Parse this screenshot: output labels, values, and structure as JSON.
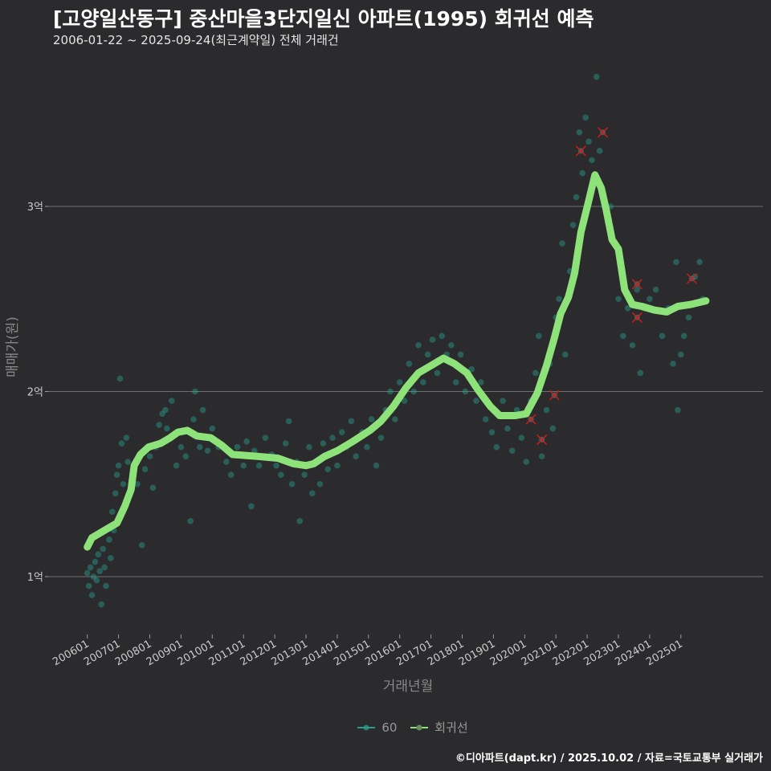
{
  "chart_data": {
    "type": "scatter",
    "title": "[고양일산동구] 중산마을3단지일신 아파트(1995) 회귀선 예측",
    "subtitle": "2006-01-22 ~ 2025-09-24(최근계약일) 전체 거래건",
    "xlabel": "거래년월",
    "ylabel": "매매가(원)",
    "x_ticks": [
      "200601",
      "200701",
      "200801",
      "200901",
      "201001",
      "201101",
      "201201",
      "201301",
      "201401",
      "201501",
      "201601",
      "201701",
      "201801",
      "201901",
      "202001",
      "202101",
      "202201",
      "202301",
      "202401",
      "202501"
    ],
    "y_ticks": [
      {
        "value": 1,
        "label": "1억"
      },
      {
        "value": 2,
        "label": "2억"
      },
      {
        "value": 3,
        "label": "3억"
      }
    ],
    "xlim": [
      2004.75,
      2026.6
    ],
    "ylim": [
      0.7,
      3.8
    ],
    "grid": true,
    "legend_position": "bottom",
    "legend": [
      {
        "name": "60",
        "color": "#2a9d8f"
      },
      {
        "name": "회귀선",
        "color": "#8ee27a"
      }
    ],
    "colors": {
      "points": "#2a9d8f",
      "line": "#8ee27a",
      "outlier": "#d7191c",
      "background": "#2b2a2c",
      "grid": "#707070"
    },
    "regression_line": [
      [
        2006.0,
        1.16
      ],
      [
        2006.15,
        1.21
      ],
      [
        2006.55,
        1.25
      ],
      [
        2006.95,
        1.29
      ],
      [
        2007.2,
        1.38
      ],
      [
        2007.4,
        1.47
      ],
      [
        2007.5,
        1.6
      ],
      [
        2007.7,
        1.66
      ],
      [
        2007.96,
        1.7
      ],
      [
        2008.35,
        1.72
      ],
      [
        2008.65,
        1.75
      ],
      [
        2008.9,
        1.78
      ],
      [
        2009.2,
        1.79
      ],
      [
        2009.5,
        1.76
      ],
      [
        2009.95,
        1.75
      ],
      [
        2010.3,
        1.71
      ],
      [
        2010.65,
        1.66
      ],
      [
        2011.45,
        1.65
      ],
      [
        2012.1,
        1.64
      ],
      [
        2012.6,
        1.61
      ],
      [
        2013.0,
        1.6
      ],
      [
        2013.25,
        1.61
      ],
      [
        2013.6,
        1.65
      ],
      [
        2014.0,
        1.68
      ],
      [
        2014.5,
        1.73
      ],
      [
        2015.05,
        1.79
      ],
      [
        2015.4,
        1.84
      ],
      [
        2015.8,
        1.92
      ],
      [
        2016.2,
        2.02
      ],
      [
        2016.6,
        2.1
      ],
      [
        2017.0,
        2.14
      ],
      [
        2017.4,
        2.18
      ],
      [
        2017.75,
        2.15
      ],
      [
        2018.15,
        2.1
      ],
      [
        2018.5,
        2.01
      ],
      [
        2018.9,
        1.92
      ],
      [
        2019.2,
        1.87
      ],
      [
        2019.7,
        1.87
      ],
      [
        2020.05,
        1.88
      ],
      [
        2020.4,
        1.99
      ],
      [
        2020.7,
        2.14
      ],
      [
        2020.95,
        2.29
      ],
      [
        2021.15,
        2.42
      ],
      [
        2021.4,
        2.51
      ],
      [
        2021.6,
        2.64
      ],
      [
        2021.8,
        2.86
      ],
      [
        2022.05,
        3.03
      ],
      [
        2022.25,
        3.17
      ],
      [
        2022.45,
        3.1
      ],
      [
        2022.6,
        2.99
      ],
      [
        2022.8,
        2.82
      ],
      [
        2023.0,
        2.77
      ],
      [
        2023.2,
        2.55
      ],
      [
        2023.45,
        2.47
      ],
      [
        2023.75,
        2.46
      ],
      [
        2024.15,
        2.44
      ],
      [
        2024.55,
        2.43
      ],
      [
        2024.9,
        2.46
      ],
      [
        2025.3,
        2.47
      ],
      [
        2025.8,
        2.49
      ]
    ],
    "points": [
      [
        2006.0,
        1.02
      ],
      [
        2006.05,
        0.95
      ],
      [
        2006.1,
        1.05
      ],
      [
        2006.15,
        0.9
      ],
      [
        2006.2,
        1.0
      ],
      [
        2006.25,
        1.08
      ],
      [
        2006.3,
        0.98
      ],
      [
        2006.35,
        1.12
      ],
      [
        2006.4,
        1.03
      ],
      [
        2006.45,
        0.85
      ],
      [
        2006.5,
        1.15
      ],
      [
        2006.55,
        1.05
      ],
      [
        2006.6,
        0.95
      ],
      [
        2006.7,
        1.2
      ],
      [
        2006.75,
        1.1
      ],
      [
        2006.8,
        1.35
      ],
      [
        2006.85,
        1.25
      ],
      [
        2006.9,
        1.45
      ],
      [
        2006.95,
        1.55
      ],
      [
        2007.0,
        1.6
      ],
      [
        2007.05,
        2.07
      ],
      [
        2007.1,
        1.72
      ],
      [
        2007.15,
        1.5
      ],
      [
        2007.25,
        1.75
      ],
      [
        2007.3,
        1.62
      ],
      [
        2007.45,
        1.55
      ],
      [
        2007.6,
        1.5
      ],
      [
        2007.75,
        1.17
      ],
      [
        2007.85,
        1.58
      ],
      [
        2008.0,
        1.65
      ],
      [
        2008.1,
        1.48
      ],
      [
        2008.2,
        1.7
      ],
      [
        2008.3,
        1.82
      ],
      [
        2008.4,
        1.88
      ],
      [
        2008.5,
        1.9
      ],
      [
        2008.55,
        1.8
      ],
      [
        2008.7,
        1.95
      ],
      [
        2008.85,
        1.6
      ],
      [
        2009.0,
        1.7
      ],
      [
        2009.15,
        1.65
      ],
      [
        2009.3,
        1.3
      ],
      [
        2009.4,
        1.85
      ],
      [
        2009.45,
        2.0
      ],
      [
        2009.6,
        1.7
      ],
      [
        2009.7,
        1.9
      ],
      [
        2009.85,
        1.68
      ],
      [
        2010.0,
        1.8
      ],
      [
        2010.2,
        1.7
      ],
      [
        2010.45,
        1.62
      ],
      [
        2010.6,
        1.55
      ],
      [
        2010.8,
        1.7
      ],
      [
        2011.0,
        1.6
      ],
      [
        2011.1,
        1.73
      ],
      [
        2011.25,
        1.38
      ],
      [
        2011.35,
        1.68
      ],
      [
        2011.5,
        1.6
      ],
      [
        2011.7,
        1.75
      ],
      [
        2011.9,
        1.66
      ],
      [
        2012.05,
        1.6
      ],
      [
        2012.2,
        1.55
      ],
      [
        2012.35,
        1.72
      ],
      [
        2012.45,
        1.84
      ],
      [
        2012.55,
        1.5
      ],
      [
        2012.7,
        1.62
      ],
      [
        2012.8,
        1.3
      ],
      [
        2012.95,
        1.55
      ],
      [
        2013.1,
        1.7
      ],
      [
        2013.2,
        1.45
      ],
      [
        2013.3,
        1.62
      ],
      [
        2013.45,
        1.5
      ],
      [
        2013.55,
        1.72
      ],
      [
        2013.7,
        1.58
      ],
      [
        2013.85,
        1.75
      ],
      [
        2014.0,
        1.6
      ],
      [
        2014.15,
        1.78
      ],
      [
        2014.3,
        1.7
      ],
      [
        2014.45,
        1.84
      ],
      [
        2014.6,
        1.65
      ],
      [
        2014.8,
        1.78
      ],
      [
        2014.95,
        1.7
      ],
      [
        2015.1,
        1.85
      ],
      [
        2015.25,
        1.6
      ],
      [
        2015.4,
        1.75
      ],
      [
        2015.55,
        1.9
      ],
      [
        2015.7,
        2.0
      ],
      [
        2015.85,
        1.85
      ],
      [
        2016.0,
        2.05
      ],
      [
        2016.15,
        1.95
      ],
      [
        2016.3,
        2.15
      ],
      [
        2016.45,
        2.0
      ],
      [
        2016.6,
        2.25
      ],
      [
        2016.75,
        2.05
      ],
      [
        2016.9,
        2.2
      ],
      [
        2017.05,
        2.28
      ],
      [
        2017.2,
        2.1
      ],
      [
        2017.35,
        2.3
      ],
      [
        2017.5,
        2.2
      ],
      [
        2017.65,
        2.25
      ],
      [
        2017.8,
        2.05
      ],
      [
        2017.95,
        2.2
      ],
      [
        2018.1,
        2.0
      ],
      [
        2018.3,
        2.12
      ],
      [
        2018.45,
        1.95
      ],
      [
        2018.6,
        2.05
      ],
      [
        2018.75,
        1.85
      ],
      [
        2018.95,
        1.78
      ],
      [
        2019.1,
        1.7
      ],
      [
        2019.3,
        1.95
      ],
      [
        2019.45,
        1.8
      ],
      [
        2019.6,
        1.68
      ],
      [
        2019.75,
        1.9
      ],
      [
        2019.9,
        1.75
      ],
      [
        2020.05,
        1.62
      ],
      [
        2020.2,
        1.95
      ],
      [
        2020.35,
        2.1
      ],
      [
        2020.45,
        2.3
      ],
      [
        2020.55,
        1.65
      ],
      [
        2020.7,
        1.9
      ],
      [
        2020.8,
        2.15
      ],
      [
        2020.9,
        1.8
      ],
      [
        2021.0,
        2.4
      ],
      [
        2021.1,
        2.5
      ],
      [
        2021.2,
        2.8
      ],
      [
        2021.3,
        2.2
      ],
      [
        2021.45,
        2.65
      ],
      [
        2021.55,
        2.9
      ],
      [
        2021.65,
        3.05
      ],
      [
        2021.75,
        3.4
      ],
      [
        2021.85,
        3.18
      ],
      [
        2021.95,
        3.48
      ],
      [
        2022.05,
        3.35
      ],
      [
        2022.15,
        3.25
      ],
      [
        2022.3,
        3.7
      ],
      [
        2022.4,
        3.3
      ],
      [
        2022.55,
        3.0
      ],
      [
        2022.75,
        3.0
      ],
      [
        2023.0,
        2.5
      ],
      [
        2023.15,
        2.3
      ],
      [
        2023.3,
        2.45
      ],
      [
        2023.45,
        2.25
      ],
      [
        2023.6,
        2.55
      ],
      [
        2023.7,
        2.1
      ],
      [
        2023.85,
        2.45
      ],
      [
        2024.0,
        2.5
      ],
      [
        2024.2,
        2.55
      ],
      [
        2024.4,
        2.3
      ],
      [
        2024.6,
        2.45
      ],
      [
        2024.75,
        2.15
      ],
      [
        2024.85,
        2.7
      ],
      [
        2024.9,
        1.9
      ],
      [
        2025.0,
        2.2
      ],
      [
        2025.1,
        2.3
      ],
      [
        2025.25,
        2.4
      ],
      [
        2025.45,
        2.62
      ],
      [
        2025.6,
        2.7
      ],
      [
        2025.7,
        2.5
      ]
    ],
    "outliers": [
      [
        2021.8,
        3.3
      ],
      [
        2022.5,
        3.4
      ],
      [
        2020.2,
        1.85
      ],
      [
        2020.55,
        1.74
      ],
      [
        2020.95,
        1.98
      ],
      [
        2023.6,
        2.58
      ],
      [
        2023.6,
        2.4
      ],
      [
        2025.35,
        2.61
      ]
    ]
  },
  "footer": "©디아파트(dapt.kr) / 2025.10.02 / 자료=국토교통부 실거래가"
}
